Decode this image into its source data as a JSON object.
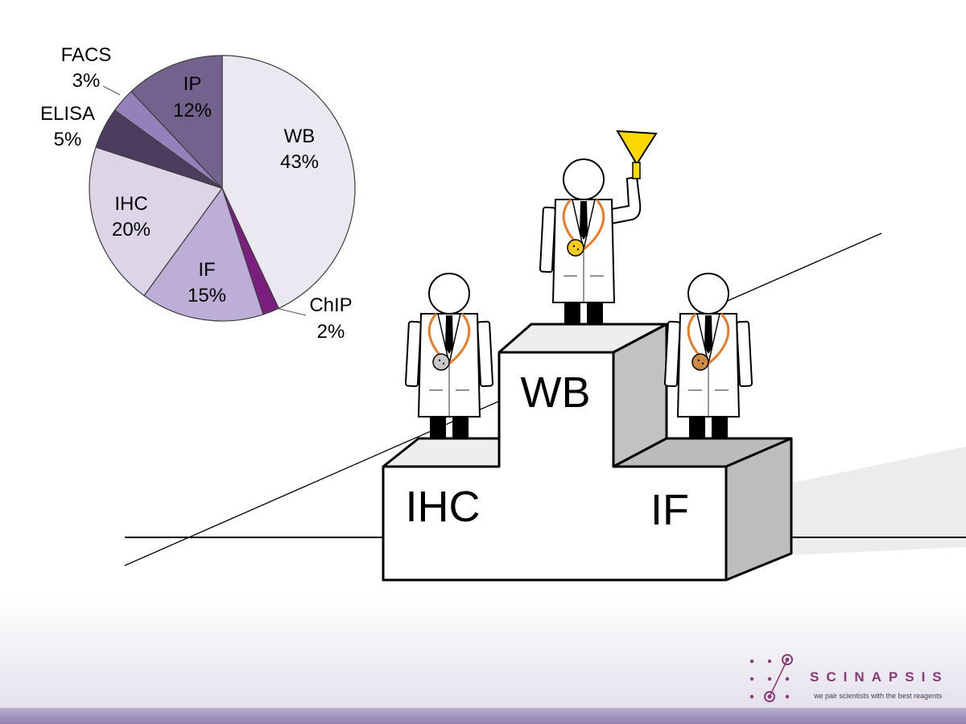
{
  "chart_data": {
    "type": "pie",
    "slices": [
      {
        "label": "WB",
        "percent": "43%",
        "value": 43,
        "color": "#ece8f2"
      },
      {
        "label": "ChIP",
        "percent": "2%",
        "value": 2,
        "color": "#7a1f7e"
      },
      {
        "label": "IF",
        "percent": "15%",
        "value": 15,
        "color": "#bcaed6"
      },
      {
        "label": "IHC",
        "percent": "20%",
        "value": 20,
        "color": "#dcd5e8"
      },
      {
        "label": "ELISA",
        "percent": "5%",
        "value": 5,
        "color": "#4c3d5e"
      },
      {
        "label": "FACS",
        "percent": "3%",
        "value": 3,
        "color": "#9680bb"
      },
      {
        "label": "IP",
        "percent": "12%",
        "value": 12,
        "color": "#74628e"
      }
    ]
  },
  "podium": {
    "first": "WB",
    "second": "IHC",
    "third": "IF"
  },
  "medals": {
    "gold": "#f5cd1e",
    "silver": "#c8c8c8",
    "bronze": "#cf8a44",
    "lanyard": "#ee7b24",
    "trophy": "#fdd800"
  },
  "logo": {
    "name": "SCINAPSIS",
    "tagline": "we pair scientists with the best reagents",
    "color": "#8a3a78"
  }
}
